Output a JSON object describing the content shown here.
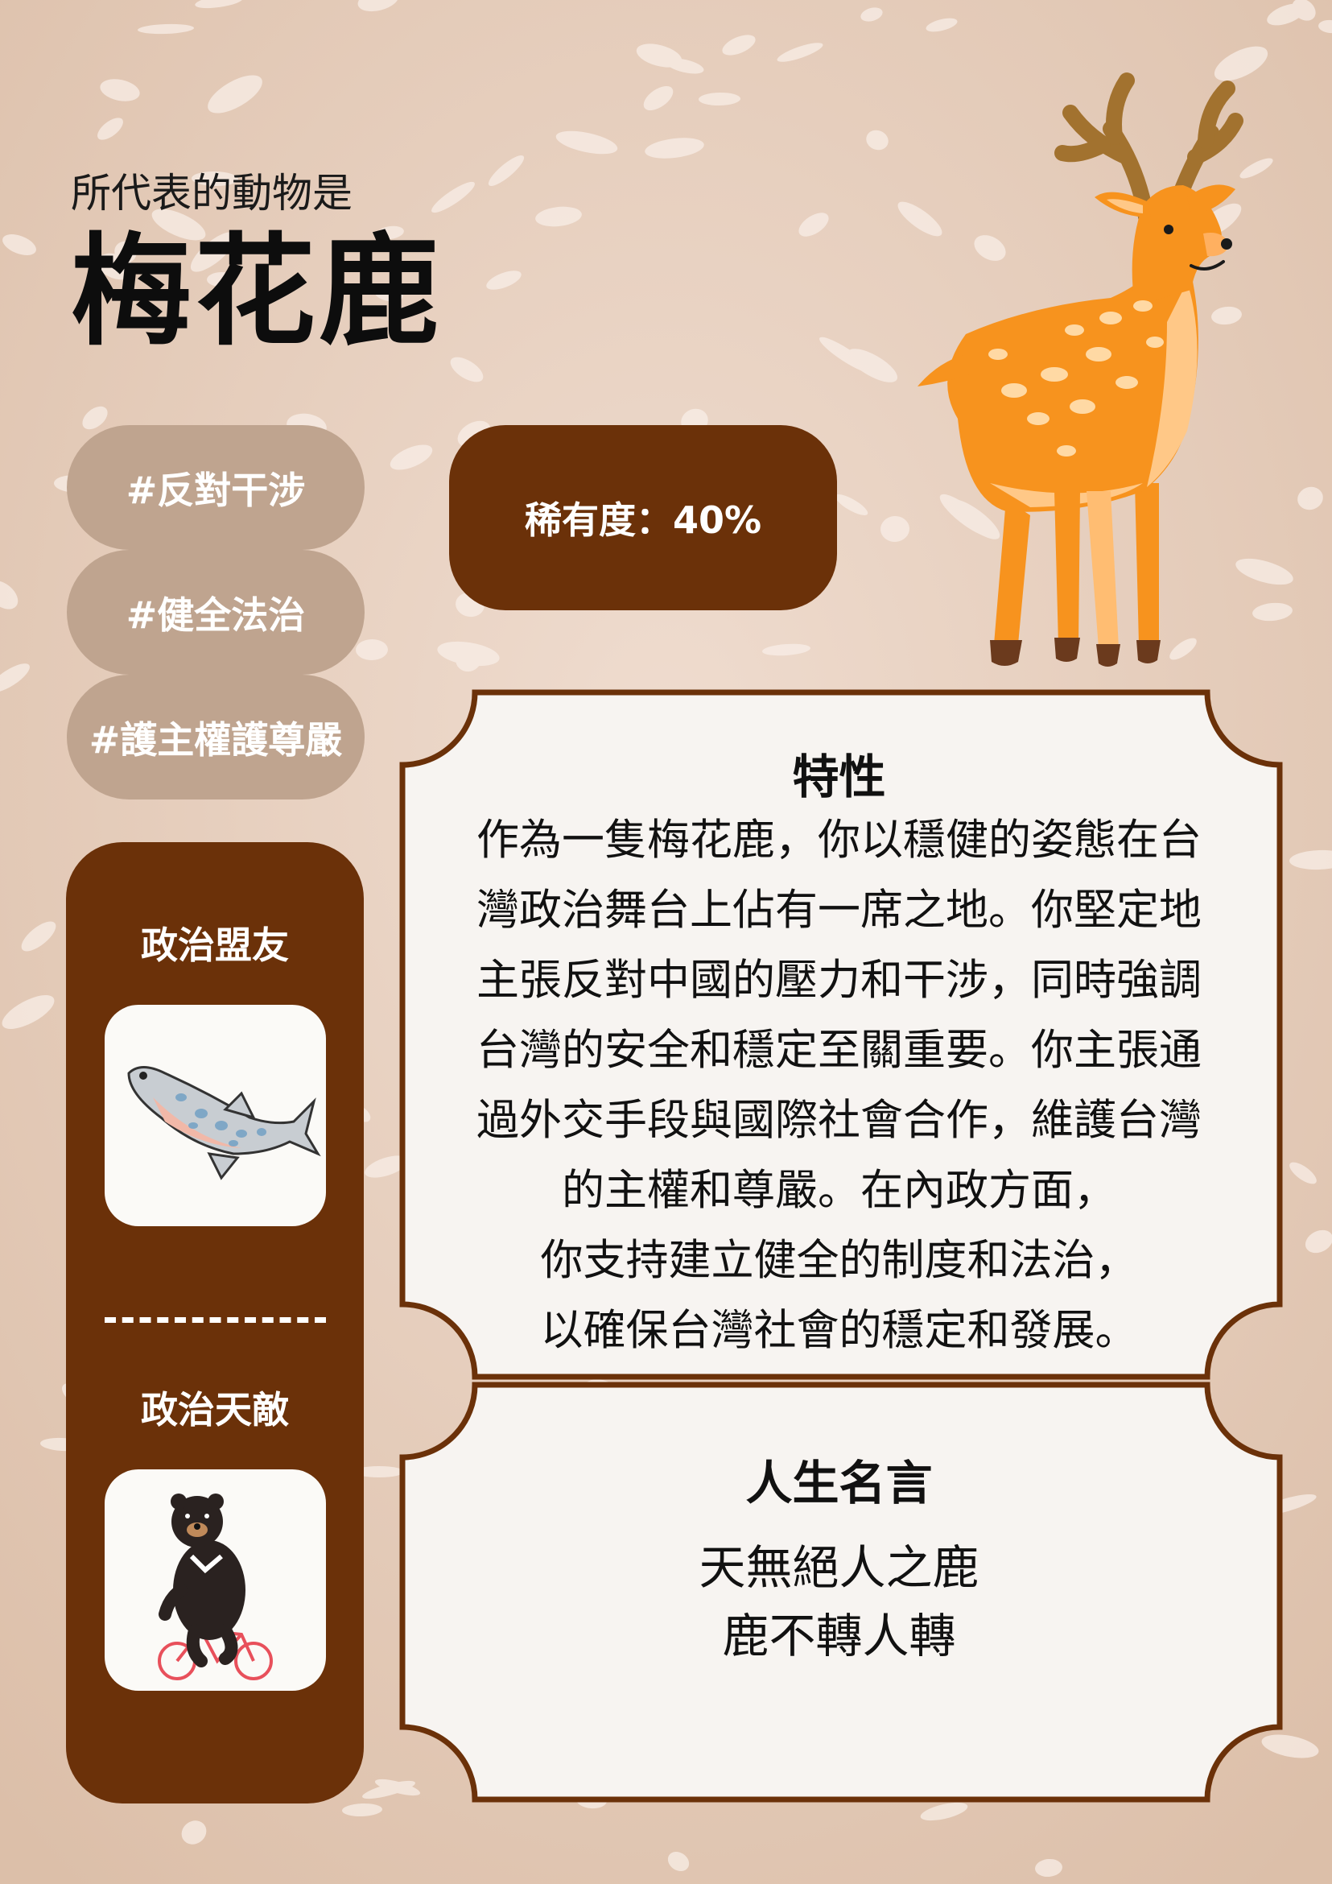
{
  "header": {
    "subtitle": "所代表的動物是",
    "title": "梅花鹿"
  },
  "tags": [
    "#反對干涉",
    "#健全法治",
    "#護主權護尊嚴"
  ],
  "rarity": "稀有度：40%",
  "sidebar": {
    "ally_label": "政治盟友",
    "enemy_label": "政治天敵"
  },
  "traits": {
    "title": "特性",
    "lines": [
      "作為一隻梅花鹿，你以穩健的姿態在台",
      "灣政治舞台上佔有一席之地。你堅定地",
      "主張反對中國的壓力和干涉，同時強調",
      "台灣的安全和穩定至關重要。你主張通",
      "過外交手段與國際社會合作，維護台灣",
      "的主權和尊嚴。在內政方面，",
      "你支持建立健全的制度和法治，",
      "以確保台灣社會的穩定和發展。"
    ]
  },
  "motto": {
    "title": "人生名言",
    "lines": [
      "天無絕人之鹿",
      "鹿不轉人轉"
    ]
  },
  "colors": {
    "background": "#e9d2c2",
    "tag": "#bfa48f",
    "accent": "#6b3109",
    "card": "#f7f4f1",
    "deer": "#f7931e"
  },
  "icons": {
    "main": "sika-deer-illustration",
    "ally": "salmon-fish-icon",
    "enemy": "black-bear-on-bicycle-icon"
  }
}
